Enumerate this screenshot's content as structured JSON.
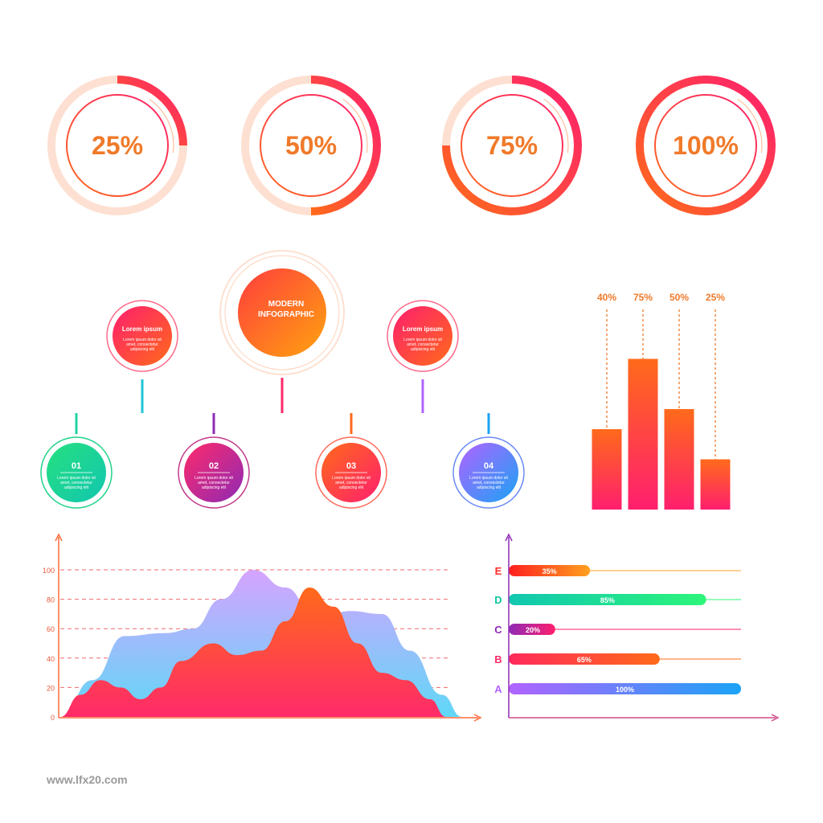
{
  "colors": {
    "orange": "#ff6a1a",
    "pink": "#ff1f6e",
    "light_peach": "#fde0d2",
    "green": "#1fd38a",
    "teal": "#11c6b0",
    "purple": "#8e2ab5",
    "blue": "#1aa3f5",
    "violet": "#b163ff",
    "area_back": "#c9a3ff",
    "area_back_bottom": "#66d3f7"
  },
  "progress_rings": [
    {
      "label": "25%",
      "value": 25
    },
    {
      "label": "50%",
      "value": 50
    },
    {
      "label": "75%",
      "value": 75
    },
    {
      "label": "100%",
      "value": 100
    }
  ],
  "hierarchy": {
    "center": {
      "line1": "MODERN",
      "line2": "INFOGRAPHIC"
    },
    "side_nodes": [
      {
        "title": "Lorem ipsum",
        "text": [
          "Lorem ipsum dolor sit",
          "amet, consectetur",
          "adipiscing elit"
        ]
      },
      {
        "title": "Lorem ipsum",
        "text": [
          "Lorem ipsum dolor sit",
          "amet, consectetur",
          "adipiscing elit"
        ]
      }
    ],
    "children": [
      {
        "number": "01",
        "text": [
          "Lorem ipsum dolor sit",
          "amet, consectetur",
          "adipiscing elit"
        ]
      },
      {
        "number": "02",
        "text": [
          "Lorem ipsum dolor sit",
          "amet, consectetur",
          "adipiscing elit"
        ]
      },
      {
        "number": "03",
        "text": [
          "Lorem ipsum dolor sit",
          "amet, consectetur",
          "adipiscing elit"
        ]
      },
      {
        "number": "04",
        "text": [
          "Lorem ipsum dolor sit",
          "amet, consectetur",
          "adipiscing elit"
        ]
      }
    ]
  },
  "chart_data": [
    {
      "type": "bar",
      "categories": [
        "40%",
        "75%",
        "50%",
        "25%"
      ],
      "values": [
        40,
        75,
        50,
        25
      ],
      "labels": [
        "40%",
        "75%",
        "50%",
        "25%"
      ],
      "ylim": [
        0,
        100
      ]
    },
    {
      "type": "area",
      "yticks": [
        "100",
        "80",
        "60",
        "40",
        "20",
        "0"
      ],
      "ylim": [
        0,
        100
      ],
      "xlim": [
        0,
        100
      ],
      "gridlines": [
        20,
        40,
        60,
        80,
        100
      ],
      "series": [
        {
          "color_top": "#c9a3ff",
          "color_bottom": "#66d3f7",
          "points": [
            [
              0,
              0
            ],
            [
              8,
              25
            ],
            [
              16,
              55
            ],
            [
              26,
              57
            ],
            [
              33,
              60
            ],
            [
              40,
              80
            ],
            [
              48,
              100
            ],
            [
              56,
              88
            ],
            [
              64,
              65
            ],
            [
              72,
              72
            ],
            [
              80,
              70
            ],
            [
              87,
              45
            ],
            [
              95,
              15
            ],
            [
              100,
              0
            ]
          ]
        },
        {
          "color_top": "#ff6a1a",
          "color_bottom": "#ff1f6e",
          "points": [
            [
              0,
              0
            ],
            [
              5,
              15
            ],
            [
              10,
              25
            ],
            [
              15,
              20
            ],
            [
              20,
              12
            ],
            [
              25,
              20
            ],
            [
              30,
              38
            ],
            [
              38,
              50
            ],
            [
              44,
              42
            ],
            [
              50,
              45
            ],
            [
              56,
              65
            ],
            [
              62,
              88
            ],
            [
              68,
              75
            ],
            [
              74,
              50
            ],
            [
              80,
              30
            ],
            [
              86,
              25
            ],
            [
              92,
              12
            ],
            [
              96,
              0
            ]
          ]
        }
      ]
    },
    {
      "type": "bar",
      "orientation": "horizontal",
      "categories": [
        "E",
        "D",
        "C",
        "B",
        "A"
      ],
      "values": [
        35,
        85,
        20,
        65,
        100
      ],
      "labels": [
        "35%",
        "85%",
        "20%",
        "65%",
        "100%"
      ],
      "colors": [
        [
          "#ff1f1f",
          "#ffa11f"
        ],
        [
          "#11c6b0",
          "#2df57a"
        ],
        [
          "#8e2ab5",
          "#ff1f6e"
        ],
        [
          "#ff2a5a",
          "#ff6a1a"
        ],
        [
          "#b163ff",
          "#1aa3f5"
        ]
      ],
      "letter_colors": [
        "#ff2a2a",
        "#11c6a0",
        "#8e2ab5",
        "#ff2a6a",
        "#b163ff"
      ],
      "xlim": [
        0,
        100
      ]
    }
  ],
  "watermark": "www.lfx20.com"
}
